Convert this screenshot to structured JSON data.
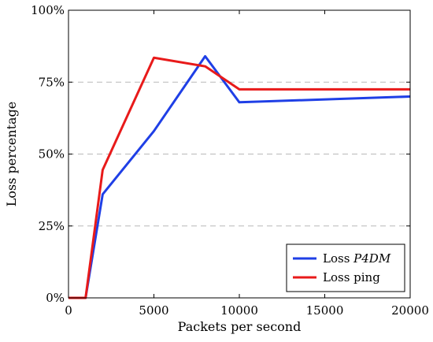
{
  "chart_data": {
    "type": "line",
    "xlabel": "Packets per second",
    "ylabel": "Loss percentage",
    "xlim": [
      0,
      20000
    ],
    "ylim": [
      0,
      100
    ],
    "xticks": [
      0,
      5000,
      10000,
      15000,
      20000
    ],
    "xtick_labels": [
      "0",
      "5000",
      "10000",
      "15000",
      "20000"
    ],
    "yticks": [
      0,
      25,
      50,
      75,
      100
    ],
    "ytick_labels": [
      "0%",
      "25%",
      "50%",
      "75%",
      "100%"
    ],
    "grid": "horizontal dashed at y ticks",
    "legend_position": "bottom-right",
    "series": [
      {
        "name": "P4DM",
        "legend_prefix": "Loss ",
        "legend_emph": "P4DM",
        "color": "#1f3fe6",
        "x": [
          0,
          1000,
          2000,
          5000,
          8000,
          10000,
          20000
        ],
        "y": [
          0,
          0,
          36,
          58,
          84,
          68,
          70
        ]
      },
      {
        "name": "Loss ping",
        "legend_prefix": "Loss ping",
        "legend_emph": "",
        "color": "#e81a1a",
        "x": [
          0,
          1000,
          2000,
          5000,
          8000,
          10000,
          20000
        ],
        "y": [
          0,
          0,
          44.5,
          83.5,
          80.5,
          72.5,
          72.5
        ]
      }
    ]
  }
}
